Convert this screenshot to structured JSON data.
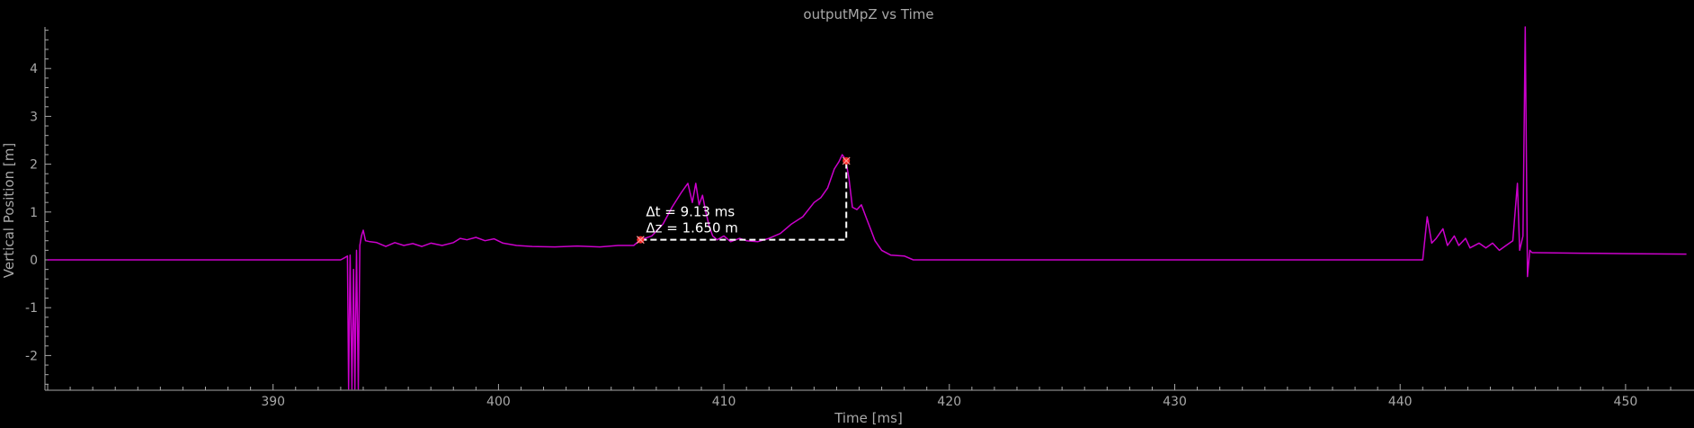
{
  "chart_data": {
    "type": "line",
    "title": "outputMpZ vs Time",
    "xlabel": "Time [ms]",
    "ylabel": "Vertical Position [m]",
    "xlim": [
      379.8,
      452.7
    ],
    "ylim": [
      -2.75,
      4.95
    ],
    "xticks": [
      390,
      400,
      410,
      420,
      430,
      440,
      450
    ],
    "yticks": [
      -2,
      -1,
      0,
      1,
      2,
      3,
      4
    ],
    "ytick_labels": [
      "-2",
      "-1",
      "0",
      "1",
      "2",
      "3",
      "4"
    ],
    "grid": false,
    "colors": {
      "background": "#000000",
      "line": "#cc00cc",
      "axis": "#a8a8a8",
      "marker": "#ff2a2a",
      "annotation": "#ffffff"
    },
    "series": [
      {
        "x": [
          380,
          385,
          390,
          393.0,
          393.2,
          393.3,
          393.35,
          393.42,
          393.5,
          393.57,
          393.63,
          393.7,
          393.78,
          393.85,
          393.92,
          394.0,
          394.1,
          394.3,
          394.6,
          395.0,
          395.4,
          395.8,
          396.2,
          396.6,
          397.0,
          397.5,
          398.0,
          398.3,
          398.6,
          399.0,
          399.4,
          399.8,
          400.2,
          400.8,
          401.5,
          402.5,
          403.5,
          404.5,
          405.3,
          406.0,
          406.3,
          406.8,
          407.3,
          407.7,
          408.1,
          408.4,
          408.6,
          408.75,
          408.9,
          409.05,
          409.2,
          409.35,
          409.5,
          409.7,
          410.0,
          410.3,
          410.7,
          411.0,
          411.5,
          412.0,
          412.5,
          413.0,
          413.5,
          414.0,
          414.3,
          414.6,
          414.9,
          415.1,
          415.25,
          415.4,
          415.55,
          415.7,
          415.9,
          416.1,
          416.3,
          416.5,
          416.7,
          417.0,
          417.4,
          418.0,
          418.4,
          418.6,
          419,
          425,
          430,
          435,
          440,
          441.0,
          441.2,
          441.4,
          441.6,
          441.9,
          442.1,
          442.4,
          442.6,
          442.9,
          443.1,
          443.5,
          443.8,
          444.1,
          444.4,
          444.7,
          445.0,
          445.2,
          445.3,
          445.45,
          445.55,
          445.65,
          445.75,
          445.85,
          446.0,
          448,
          450,
          452.7
        ],
        "y": [
          0.0,
          0.0,
          0.0,
          0.0,
          0.05,
          0.08,
          -2.7,
          0.1,
          -2.7,
          -0.2,
          -2.7,
          0.2,
          -2.7,
          0.3,
          0.5,
          0.62,
          0.4,
          0.38,
          0.36,
          0.28,
          0.36,
          0.3,
          0.34,
          0.28,
          0.35,
          0.3,
          0.36,
          0.45,
          0.42,
          0.47,
          0.4,
          0.44,
          0.35,
          0.3,
          0.28,
          0.27,
          0.29,
          0.27,
          0.3,
          0.3,
          0.42,
          0.5,
          0.75,
          1.1,
          1.4,
          1.6,
          1.2,
          1.6,
          1.15,
          1.35,
          1.0,
          0.7,
          0.5,
          0.42,
          0.5,
          0.38,
          0.45,
          0.4,
          0.38,
          0.45,
          0.55,
          0.75,
          0.9,
          1.2,
          1.3,
          1.5,
          1.9,
          2.05,
          2.2,
          2.1,
          1.7,
          1.1,
          1.05,
          1.15,
          0.9,
          0.65,
          0.4,
          0.2,
          0.1,
          0.08,
          0.0,
          0.0,
          0.0,
          0.0,
          0.0,
          0.0,
          0.0,
          0.0,
          0.9,
          0.35,
          0.45,
          0.65,
          0.3,
          0.5,
          0.3,
          0.45,
          0.25,
          0.35,
          0.25,
          0.35,
          0.2,
          0.3,
          0.4,
          1.6,
          0.2,
          0.5,
          4.9,
          -0.35,
          0.2,
          0.15,
          0.15,
          0.14,
          0.13,
          0.12
        ]
      }
    ],
    "markers": [
      {
        "x": 406.3,
        "y": 0.42
      },
      {
        "x": 415.43,
        "y": 2.07
      }
    ],
    "annotation": {
      "line1": "Δt = 9.13 ms",
      "line2": "Δz = 1.650 m"
    }
  }
}
